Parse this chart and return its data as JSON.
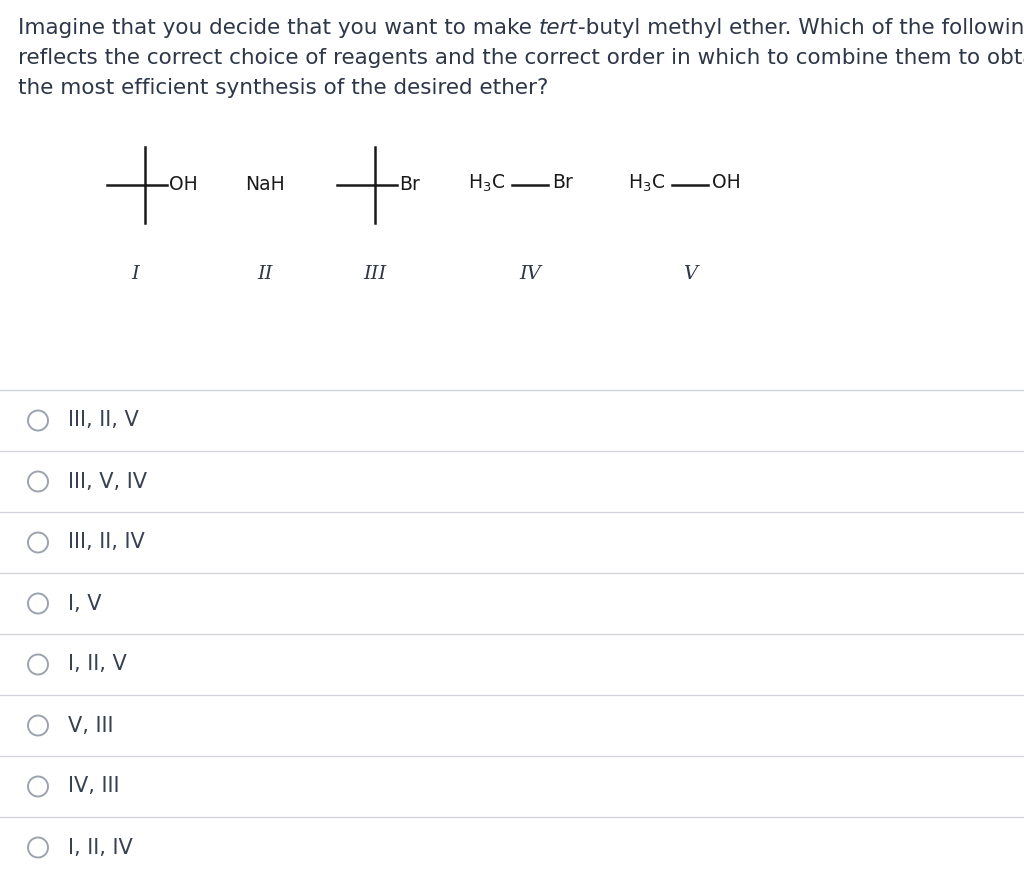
{
  "question_line1_pre": "Imagine that you decide that you want to make ",
  "question_line1_italic": "tert",
  "question_line1_post": "-butyl methyl ether. Which of the following",
  "question_line2": "reflects the correct choice of reagents and the correct order in which to combine them to obtain",
  "question_line3": "the most efficient synthesis of the desired ether?",
  "choices": [
    "III, II, V",
    "III, V, IV",
    "III, II, IV",
    "I, V",
    "I, II, V",
    "V, III",
    "IV, III",
    "I, II, IV"
  ],
  "bg_color": "#ffffff",
  "text_color": "#2d3748",
  "line_color": "#1a1a1a",
  "choice_text_color": "#374151",
  "divider_color": "#d1d5db",
  "font_size_question": 15.5,
  "font_size_choices": 15,
  "font_size_reagents": 13.5,
  "font_size_labels": 13,
  "circle_color": "#9ca3af",
  "struct_lw": 1.8
}
